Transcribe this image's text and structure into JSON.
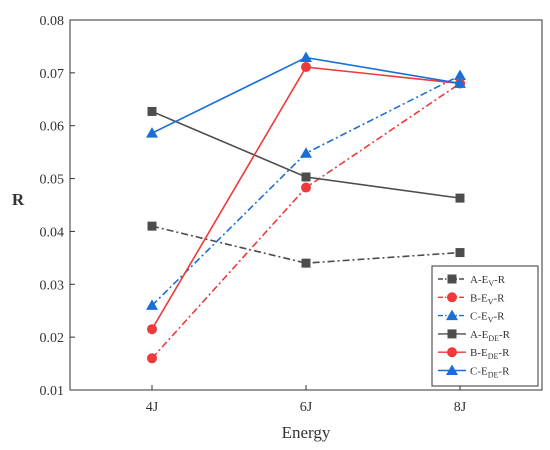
{
  "chart_data": {
    "type": "line",
    "categories": [
      "4J",
      "6J",
      "8J"
    ],
    "xlabel": "Energy",
    "ylabel": "R",
    "ylim": [
      0.01,
      0.08
    ],
    "yticks": [
      "0.01",
      "0.02",
      "0.03",
      "0.04",
      "0.05",
      "0.06",
      "0.07",
      "0.08"
    ],
    "grid": false,
    "legend_position": "bottom-right",
    "series": [
      {
        "name": "A-EV-R",
        "label_main": "A-E",
        "label_sub": "V",
        "label_tail": "-R",
        "color": "#4d4d4d",
        "marker": "square",
        "line": "dash-dot",
        "values": [
          0.041,
          0.034,
          0.036
        ]
      },
      {
        "name": "B-EV-R",
        "label_main": "B-E",
        "label_sub": "V",
        "label_tail": "-R",
        "color": "#ee3a3a",
        "marker": "circle",
        "line": "dash-dot",
        "values": [
          0.016,
          0.0483,
          0.068
        ]
      },
      {
        "name": "C-EV-R",
        "label_main": "C-E",
        "label_sub": "V",
        "label_tail": "-R",
        "color": "#1a6fd6",
        "marker": "triangle",
        "line": "dash-dot",
        "values": [
          0.026,
          0.0548,
          0.0695
        ]
      },
      {
        "name": "A-EDE-R",
        "label_main": "A-E",
        "label_sub": "DE",
        "label_tail": "-R",
        "color": "#4d4d4d",
        "marker": "square",
        "line": "solid",
        "values": [
          0.0627,
          0.0503,
          0.0463
        ]
      },
      {
        "name": "B-EDE-R",
        "label_main": "B-E",
        "label_sub": "DE",
        "label_tail": "-R",
        "color": "#ee3a3a",
        "marker": "circle",
        "line": "solid",
        "values": [
          0.0215,
          0.0711,
          0.068
        ]
      },
      {
        "name": "C-EDE-R",
        "label_main": "C-E",
        "label_sub": "DE",
        "label_tail": "-R",
        "color": "#1a6fd6",
        "marker": "triangle",
        "line": "solid",
        "values": [
          0.0586,
          0.0729,
          0.068
        ]
      }
    ]
  }
}
